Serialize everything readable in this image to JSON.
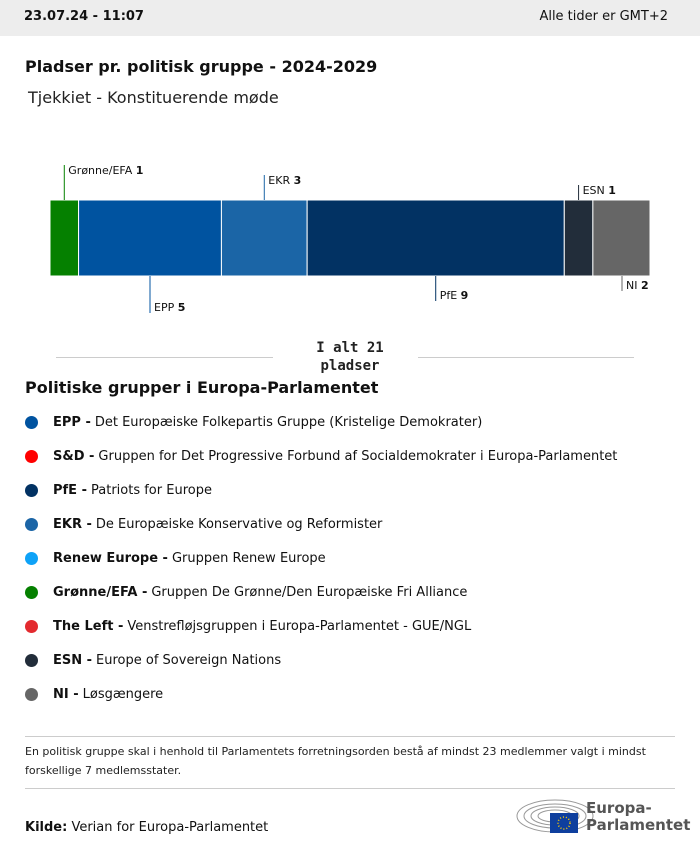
{
  "header": {
    "datetime": "23.07.24 - 11:07",
    "timezone": "Alle tider er GMT+2"
  },
  "title": "Pladser pr. politisk gruppe - 2024-2029",
  "subtitle": "Tjekkiet - Konstituerende møde",
  "chart_data": {
    "type": "stacked-bar",
    "total_label_1": "I alt 21",
    "total_label_2": "pladser",
    "total": 21,
    "categories": [
      "Grønne/EFA",
      "EPP",
      "EKR",
      "PfE",
      "ESN",
      "NI"
    ],
    "values": [
      1,
      5,
      3,
      9,
      1,
      2
    ],
    "colors": [
      "#058000",
      "#0053a0",
      "#1b65a6",
      "#023263",
      "#222d3a",
      "#666666"
    ],
    "label_position": [
      "top",
      "bottom",
      "top",
      "bottom",
      "top",
      "bottom"
    ]
  },
  "legend": {
    "title": "Politiske grupper i Europa-Parlamentet",
    "items": [
      {
        "abbr": "EPP -",
        "name": "Det Europæiske Folkepartis Gruppe (Kristelige Demokrater)",
        "color": "#0053a0"
      },
      {
        "abbr": "S&D -",
        "name": "Gruppen for Det Progressive Forbund af Socialdemokrater i Europa-Parlamentet",
        "color": "#ff0000"
      },
      {
        "abbr": "PfE -",
        "name": "Patriots for Europe",
        "color": "#023263"
      },
      {
        "abbr": "EKR -",
        "name": "De Europæiske Konservative og Reformister",
        "color": "#1b65a6"
      },
      {
        "abbr": "Renew Europe -",
        "name": "Gruppen Renew Europe",
        "color": "#0ea2f7"
      },
      {
        "abbr": "Grønne/EFA -",
        "name": "Gruppen De Grønne/Den Europæiske Fri Alliance",
        "color": "#058000"
      },
      {
        "abbr": "The Left -",
        "name": "Venstrefløjsgruppen i Europa-Parlamentet - GUE/NGL",
        "color": "#e32a2f"
      },
      {
        "abbr": "ESN -",
        "name": "Europe of Sovereign Nations",
        "color": "#222d3a"
      },
      {
        "abbr": "NI -",
        "name": "Løsgængere",
        "color": "#666666"
      }
    ]
  },
  "note": "En politisk gruppe skal i henhold til Parlamentets forretningsorden bestå af mindst 23 medlemmer valgt i mindst forskellige 7 medlemsstater.",
  "source": {
    "label": "Kilde:",
    "text": "Verian for Europa-Parlamentet"
  },
  "logo": {
    "line1": "Europa-",
    "line2": "Parlamentet"
  }
}
